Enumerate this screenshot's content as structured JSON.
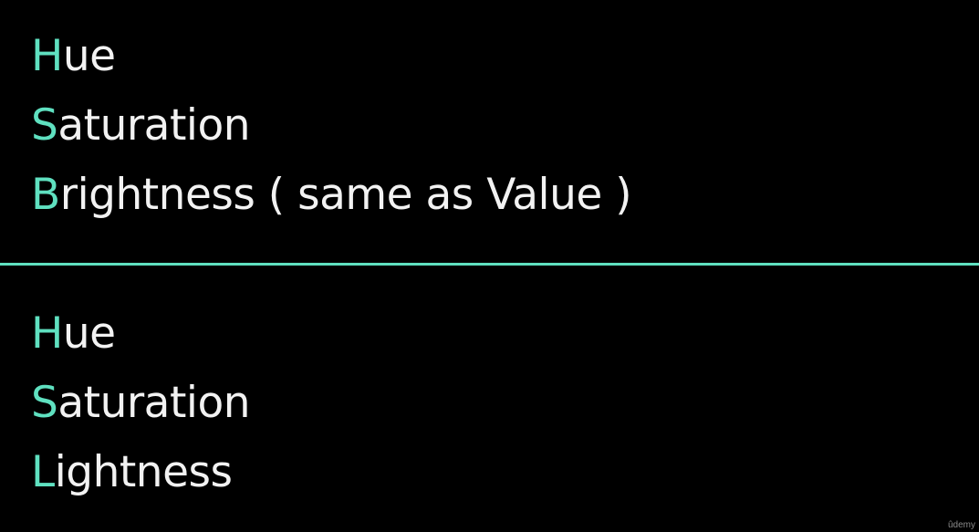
{
  "accent_color": "#5fe0c0",
  "hsb": [
    {
      "initial": "H",
      "rest": "ue"
    },
    {
      "initial": "S",
      "rest": "aturation"
    },
    {
      "initial": "B",
      "rest": "rightness ( same as Value )"
    }
  ],
  "hsl": [
    {
      "initial": "H",
      "rest": "ue"
    },
    {
      "initial": "S",
      "rest": "aturation"
    },
    {
      "initial": "L",
      "rest": "ightness"
    }
  ],
  "watermark": "ûdemy"
}
